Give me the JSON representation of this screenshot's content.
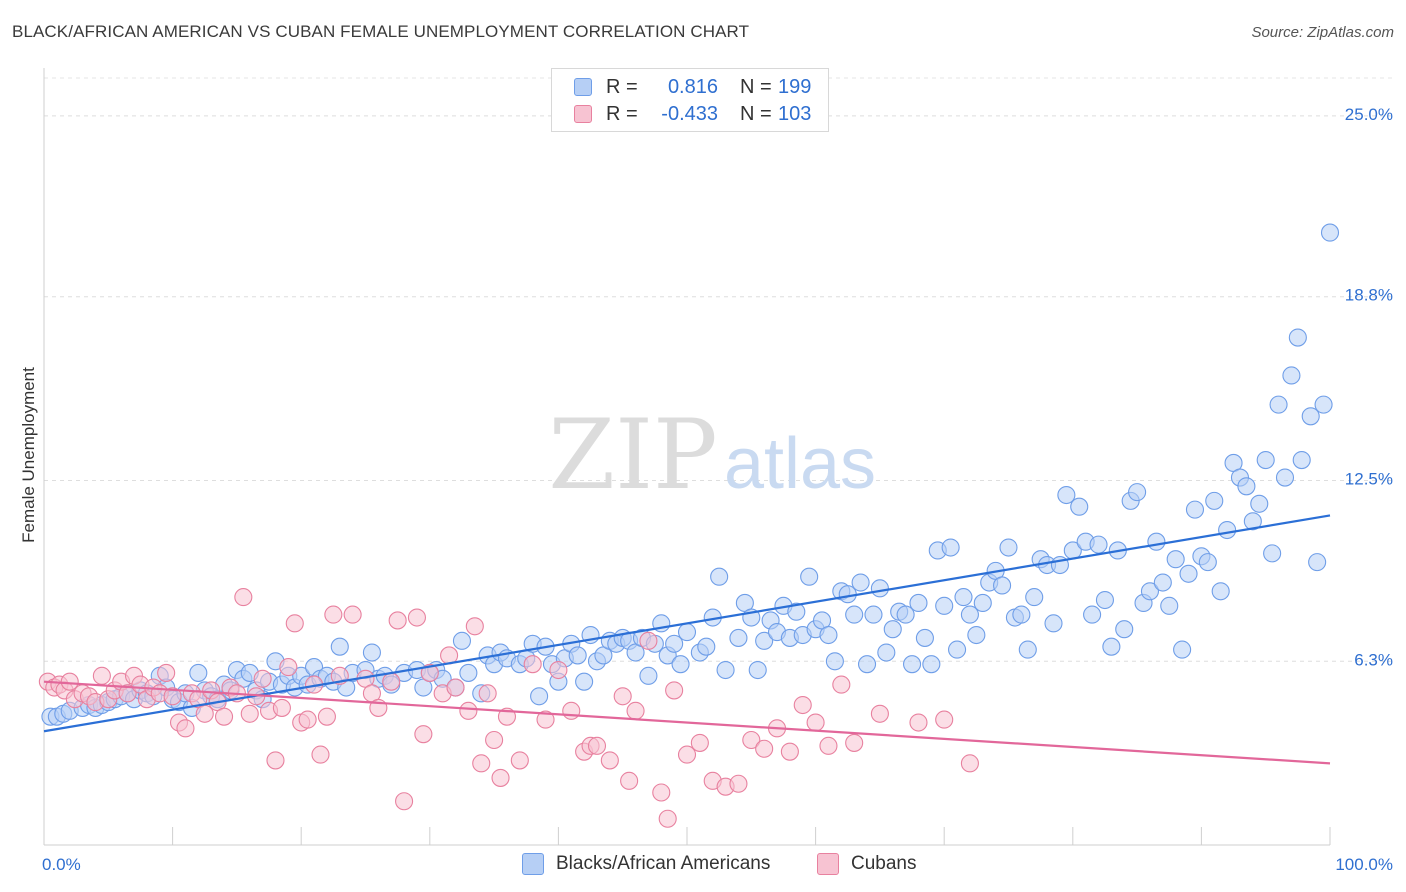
{
  "header": {
    "title": "BLACK/AFRICAN AMERICAN VS CUBAN FEMALE UNEMPLOYMENT CORRELATION CHART",
    "source": "Source: ZipAtlas.com"
  },
  "watermark": {
    "zip": "ZIP",
    "atlas": "atlas"
  },
  "legend": {
    "rows": [
      {
        "r_label": "R =",
        "r_value": "0.816",
        "n_label": "N =",
        "n_value": "199",
        "color": "#6f9ee8",
        "fill": "#b6cff5"
      },
      {
        "r_label": "R =",
        "r_value": "-0.433",
        "n_label": "N =",
        "n_value": "103",
        "color": "#e8819f",
        "fill": "#f7c3d2"
      }
    ],
    "value_color": "#2f6fd0"
  },
  "bottom_legend": [
    {
      "label": "Blacks/African Americans",
      "color": "#6f9ee8",
      "fill": "#b6cff5"
    },
    {
      "label": "Cubans",
      "color": "#e8819f",
      "fill": "#f7c3d2"
    }
  ],
  "chart_data": {
    "type": "scatter",
    "title": "BLACK/AFRICAN AMERICAN VS CUBAN FEMALE UNEMPLOYMENT CORRELATION CHART",
    "xlabel": "",
    "ylabel": "Female Unemployment",
    "xlim": [
      0,
      100
    ],
    "ylim": [
      0,
      26.3
    ],
    "x_tick_labels": [
      "0.0%",
      "100.0%"
    ],
    "y_ticks": [
      6.3,
      12.5,
      18.8,
      25.0
    ],
    "y_tick_labels": [
      "6.3%",
      "12.5%",
      "18.8%",
      "25.0%"
    ],
    "grid": "horizontal-dashed",
    "legend_position": "top-center",
    "tick_label_color": "#2f6fd0",
    "series": [
      {
        "name": "Blacks/African Americans",
        "color": "#6f9ee8",
        "fill": "#b6cff5",
        "line_color": "#2b6fd6",
        "trend": {
          "x": [
            0,
            100
          ],
          "y": [
            3.9,
            11.3
          ]
        },
        "points": [
          [
            0.5,
            4.4
          ],
          [
            1,
            4.4
          ],
          [
            1.5,
            4.5
          ],
          [
            2,
            4.6
          ],
          [
            3,
            4.7
          ],
          [
            3.5,
            4.8
          ],
          [
            4,
            4.7
          ],
          [
            4.5,
            4.8
          ],
          [
            5,
            4.9
          ],
          [
            5.5,
            5.0
          ],
          [
            6,
            5.1
          ],
          [
            6.5,
            5.2
          ],
          [
            7,
            5.0
          ],
          [
            7.5,
            5.3
          ],
          [
            8,
            5.2
          ],
          [
            8.5,
            5.1
          ],
          [
            9,
            5.8
          ],
          [
            9.5,
            5.4
          ],
          [
            10,
            5.0
          ],
          [
            10.5,
            4.9
          ],
          [
            11,
            5.2
          ],
          [
            11.5,
            4.7
          ],
          [
            12,
            5.9
          ],
          [
            12.5,
            5.3
          ],
          [
            13,
            5.1
          ],
          [
            13.5,
            5.0
          ],
          [
            14,
            5.5
          ],
          [
            14.5,
            5.3
          ],
          [
            15,
            6.0
          ],
          [
            15.5,
            5.7
          ],
          [
            16,
            5.9
          ],
          [
            16.5,
            5.3
          ],
          [
            17,
            5.0
          ],
          [
            17.5,
            5.6
          ],
          [
            18,
            6.3
          ],
          [
            18.5,
            5.5
          ],
          [
            19,
            5.8
          ],
          [
            19.5,
            5.4
          ],
          [
            20,
            5.8
          ],
          [
            20.5,
            5.5
          ],
          [
            21,
            6.1
          ],
          [
            21.5,
            5.7
          ],
          [
            22,
            5.8
          ],
          [
            22.5,
            5.6
          ],
          [
            23,
            6.8
          ],
          [
            23.5,
            5.4
          ],
          [
            24,
            5.9
          ],
          [
            25,
            6.0
          ],
          [
            25.5,
            6.6
          ],
          [
            26,
            5.7
          ],
          [
            26.5,
            5.8
          ],
          [
            27,
            5.5
          ],
          [
            28,
            5.9
          ],
          [
            29,
            6.0
          ],
          [
            29.5,
            5.4
          ],
          [
            30,
            5.9
          ],
          [
            30.5,
            6.0
          ],
          [
            31,
            5.7
          ],
          [
            32,
            5.4
          ],
          [
            32.5,
            7.0
          ],
          [
            33,
            5.9
          ],
          [
            34,
            5.2
          ],
          [
            34.5,
            6.5
          ],
          [
            35,
            6.2
          ],
          [
            35.5,
            6.6
          ],
          [
            36,
            6.4
          ],
          [
            37,
            6.2
          ],
          [
            37.5,
            6.4
          ],
          [
            38,
            6.9
          ],
          [
            38.5,
            5.1
          ],
          [
            39,
            6.8
          ],
          [
            39.5,
            6.2
          ],
          [
            40,
            5.6
          ],
          [
            40.5,
            6.4
          ],
          [
            41,
            6.9
          ],
          [
            41.5,
            6.5
          ],
          [
            42,
            5.6
          ],
          [
            42.5,
            7.2
          ],
          [
            43,
            6.3
          ],
          [
            43.5,
            6.5
          ],
          [
            44,
            7.0
          ],
          [
            44.5,
            6.9
          ],
          [
            45,
            7.1
          ],
          [
            45.5,
            7.0
          ],
          [
            46,
            6.6
          ],
          [
            46.5,
            7.1
          ],
          [
            47,
            5.8
          ],
          [
            47.5,
            6.9
          ],
          [
            48,
            7.6
          ],
          [
            48.5,
            6.5
          ],
          [
            49,
            6.9
          ],
          [
            49.5,
            6.2
          ],
          [
            50,
            7.3
          ],
          [
            51,
            6.6
          ],
          [
            51.5,
            6.8
          ],
          [
            52,
            7.8
          ],
          [
            52.5,
            9.2
          ],
          [
            53,
            6.0
          ],
          [
            54,
            7.1
          ],
          [
            54.5,
            8.3
          ],
          [
            55,
            7.8
          ],
          [
            55.5,
            6.0
          ],
          [
            56,
            7.0
          ],
          [
            56.5,
            7.7
          ],
          [
            57,
            7.3
          ],
          [
            57.5,
            8.2
          ],
          [
            58,
            7.1
          ],
          [
            58.5,
            8.0
          ],
          [
            59,
            7.2
          ],
          [
            59.5,
            9.2
          ],
          [
            60,
            7.4
          ],
          [
            60.5,
            7.7
          ],
          [
            61,
            7.2
          ],
          [
            61.5,
            6.3
          ],
          [
            62,
            8.7
          ],
          [
            62.5,
            8.6
          ],
          [
            63,
            7.9
          ],
          [
            63.5,
            9.0
          ],
          [
            64,
            6.2
          ],
          [
            64.5,
            7.9
          ],
          [
            65,
            8.8
          ],
          [
            65.5,
            6.6
          ],
          [
            66,
            7.4
          ],
          [
            66.5,
            8.0
          ],
          [
            67,
            7.9
          ],
          [
            67.5,
            6.2
          ],
          [
            68,
            8.3
          ],
          [
            68.5,
            7.1
          ],
          [
            69,
            6.2
          ],
          [
            69.5,
            10.1
          ],
          [
            70,
            8.2
          ],
          [
            70.5,
            10.2
          ],
          [
            71,
            6.7
          ],
          [
            71.5,
            8.5
          ],
          [
            72,
            7.9
          ],
          [
            72.5,
            7.2
          ],
          [
            73,
            8.3
          ],
          [
            73.5,
            9.0
          ],
          [
            74,
            9.4
          ],
          [
            74.5,
            8.9
          ],
          [
            75,
            10.2
          ],
          [
            75.5,
            7.8
          ],
          [
            76,
            7.9
          ],
          [
            76.5,
            6.7
          ],
          [
            77,
            8.5
          ],
          [
            77.5,
            9.8
          ],
          [
            78,
            9.6
          ],
          [
            78.5,
            7.6
          ],
          [
            79,
            9.6
          ],
          [
            79.5,
            12.0
          ],
          [
            80,
            10.1
          ],
          [
            80.5,
            11.6
          ],
          [
            81,
            10.4
          ],
          [
            81.5,
            7.9
          ],
          [
            82,
            10.3
          ],
          [
            82.5,
            8.4
          ],
          [
            83,
            6.8
          ],
          [
            83.5,
            10.1
          ],
          [
            84,
            7.4
          ],
          [
            84.5,
            11.8
          ],
          [
            85,
            12.1
          ],
          [
            85.5,
            8.3
          ],
          [
            86,
            8.7
          ],
          [
            86.5,
            10.4
          ],
          [
            87,
            9.0
          ],
          [
            87.5,
            8.2
          ],
          [
            88,
            9.8
          ],
          [
            88.5,
            6.7
          ],
          [
            89,
            9.3
          ],
          [
            89.5,
            11.5
          ],
          [
            90,
            9.9
          ],
          [
            90.5,
            9.7
          ],
          [
            91,
            11.8
          ],
          [
            91.5,
            8.7
          ],
          [
            92,
            10.8
          ],
          [
            92.5,
            13.1
          ],
          [
            93,
            12.6
          ],
          [
            93.5,
            12.3
          ],
          [
            94,
            11.1
          ],
          [
            94.5,
            11.7
          ],
          [
            95,
            13.2
          ],
          [
            95.5,
            10.0
          ],
          [
            96,
            15.1
          ],
          [
            96.5,
            12.6
          ],
          [
            97,
            16.1
          ],
          [
            97.5,
            17.4
          ],
          [
            97.8,
            13.2
          ],
          [
            98.5,
            14.7
          ],
          [
            99,
            9.7
          ],
          [
            99.5,
            15.1
          ],
          [
            100,
            21.0
          ]
        ]
      },
      {
        "name": "Cubans",
        "color": "#e8819f",
        "fill": "#f7c3d2",
        "line_color": "#e2679a",
        "trend": {
          "x": [
            0,
            100
          ],
          "y": [
            5.6,
            2.8
          ]
        },
        "points": [
          [
            0.3,
            5.6
          ],
          [
            0.8,
            5.4
          ],
          [
            1.2,
            5.5
          ],
          [
            1.6,
            5.3
          ],
          [
            2,
            5.6
          ],
          [
            2.4,
            5.0
          ],
          [
            3,
            5.2
          ],
          [
            3.5,
            5.1
          ],
          [
            4,
            4.9
          ],
          [
            4.5,
            5.8
          ],
          [
            5,
            5.0
          ],
          [
            5.5,
            5.3
          ],
          [
            6,
            5.6
          ],
          [
            6.5,
            5.2
          ],
          [
            7,
            5.8
          ],
          [
            7.5,
            5.5
          ],
          [
            8,
            5.0
          ],
          [
            8.5,
            5.4
          ],
          [
            9,
            5.2
          ],
          [
            9.5,
            5.9
          ],
          [
            10,
            5.1
          ],
          [
            10.5,
            4.2
          ],
          [
            11,
            4.0
          ],
          [
            11.5,
            5.2
          ],
          [
            12,
            5.0
          ],
          [
            12.5,
            4.5
          ],
          [
            13,
            5.3
          ],
          [
            13.5,
            4.9
          ],
          [
            14,
            4.4
          ],
          [
            14.5,
            5.4
          ],
          [
            15,
            5.2
          ],
          [
            15.5,
            8.5
          ],
          [
            16,
            4.5
          ],
          [
            16.5,
            5.1
          ],
          [
            17,
            5.7
          ],
          [
            17.5,
            4.6
          ],
          [
            18,
            2.9
          ],
          [
            18.5,
            4.7
          ],
          [
            19,
            6.1
          ],
          [
            19.5,
            7.6
          ],
          [
            20,
            4.2
          ],
          [
            20.5,
            4.3
          ],
          [
            21,
            5.5
          ],
          [
            21.5,
            3.1
          ],
          [
            22,
            4.4
          ],
          [
            22.5,
            7.9
          ],
          [
            23,
            5.8
          ],
          [
            24,
            7.9
          ],
          [
            25,
            5.7
          ],
          [
            25.5,
            5.2
          ],
          [
            26,
            4.7
          ],
          [
            27,
            5.6
          ],
          [
            27.5,
            7.7
          ],
          [
            28,
            1.5
          ],
          [
            29,
            7.8
          ],
          [
            29.5,
            3.8
          ],
          [
            30,
            5.9
          ],
          [
            31,
            5.2
          ],
          [
            31.5,
            6.5
          ],
          [
            32,
            5.4
          ],
          [
            33,
            4.6
          ],
          [
            33.5,
            7.5
          ],
          [
            34,
            2.8
          ],
          [
            34.5,
            5.2
          ],
          [
            35,
            3.6
          ],
          [
            35.5,
            2.3
          ],
          [
            36,
            4.4
          ],
          [
            37,
            2.9
          ],
          [
            38,
            6.2
          ],
          [
            39,
            4.3
          ],
          [
            40,
            6.0
          ],
          [
            41,
            4.6
          ],
          [
            42,
            3.2
          ],
          [
            42.5,
            3.4
          ],
          [
            43,
            3.4
          ],
          [
            44,
            2.9
          ],
          [
            45,
            5.1
          ],
          [
            45.5,
            2.2
          ],
          [
            46,
            4.6
          ],
          [
            47,
            7.0
          ],
          [
            48,
            1.8
          ],
          [
            48.5,
            0.9
          ],
          [
            49,
            5.3
          ],
          [
            50,
            3.1
          ],
          [
            51,
            3.5
          ],
          [
            52,
            2.2
          ],
          [
            53,
            2.0
          ],
          [
            54,
            2.1
          ],
          [
            55,
            3.6
          ],
          [
            56,
            3.3
          ],
          [
            57,
            4.0
          ],
          [
            58,
            3.2
          ],
          [
            59,
            4.8
          ],
          [
            60,
            4.2
          ],
          [
            61,
            3.4
          ],
          [
            62,
            5.5
          ],
          [
            63,
            3.5
          ],
          [
            65,
            4.5
          ],
          [
            68,
            4.2
          ],
          [
            70,
            4.3
          ],
          [
            72,
            2.8
          ]
        ]
      }
    ]
  }
}
